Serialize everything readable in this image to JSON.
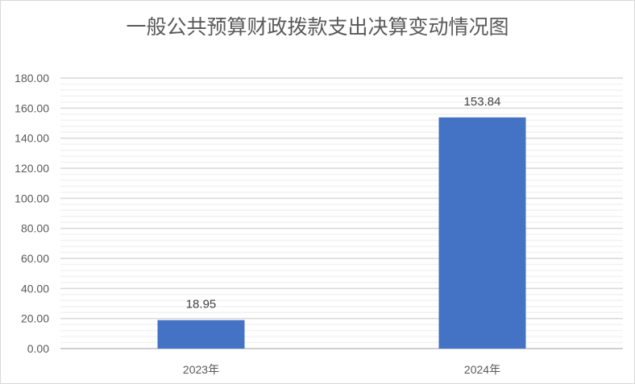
{
  "chart_data": {
    "type": "bar",
    "title": "一般公共预算财政拨款支出决算变动情况图",
    "categories": [
      "2023年",
      "2024年"
    ],
    "values": [
      18.95,
      153.84
    ],
    "data_labels": [
      "18.95",
      "153.84"
    ],
    "xlabel": "",
    "ylabel": "",
    "ylim": [
      0,
      180
    ],
    "yticks": [
      "0.00",
      "20.00",
      "40.00",
      "60.00",
      "80.00",
      "100.00",
      "120.00",
      "140.00",
      "160.00",
      "180.00"
    ],
    "grid": {
      "major": true,
      "minor": true,
      "major_step": 20,
      "minor_step": 4
    },
    "legend": "none",
    "colors": {
      "bar": "#4472C4",
      "major_grid": "#d9d9d9",
      "minor_grid": "#f2f2f2"
    }
  }
}
